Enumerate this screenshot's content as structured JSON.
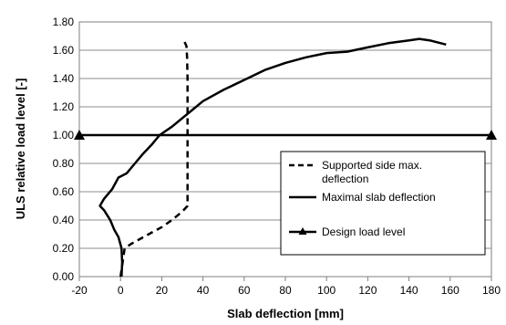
{
  "chart_data": {
    "type": "line",
    "title": "",
    "xlabel": "Slab deflection [mm]",
    "ylabel": "ULS relative load level [-]",
    "xlim": [
      -20,
      180
    ],
    "ylim": [
      0,
      1.8
    ],
    "x_ticks": [
      "-20",
      "0",
      "20",
      "40",
      "60",
      "80",
      "100",
      "120",
      "140",
      "160",
      "180"
    ],
    "y_ticks": [
      "0.00",
      "0.20",
      "0.40",
      "0.60",
      "0.80",
      "1.00",
      "1.20",
      "1.40",
      "1.60",
      "1.80"
    ],
    "grid": "horizontal",
    "legend_position": "right-middle",
    "series": [
      {
        "name": "Supported side max. deflection",
        "legend_lines": [
          "Supported side max.",
          "deflection"
        ],
        "style": "dashed",
        "color": "#000000",
        "points": [
          [
            0,
            0.0
          ],
          [
            1,
            0.1
          ],
          [
            2,
            0.2
          ],
          [
            5,
            0.23
          ],
          [
            10,
            0.27
          ],
          [
            15,
            0.31
          ],
          [
            20,
            0.35
          ],
          [
            25,
            0.4
          ],
          [
            30,
            0.46
          ],
          [
            32.5,
            0.5
          ],
          [
            32.5,
            0.7
          ],
          [
            32.5,
            0.9
          ],
          [
            32.5,
            1.0
          ],
          [
            32.5,
            1.2
          ],
          [
            32.5,
            1.4
          ],
          [
            32.3,
            1.55
          ],
          [
            32,
            1.63
          ],
          [
            31,
            1.66
          ],
          [
            30,
            1.68
          ]
        ]
      },
      {
        "name": "Maximal slab deflection",
        "style": "solid",
        "color": "#000000",
        "points": [
          [
            0.5,
            0.0
          ],
          [
            0.8,
            0.1
          ],
          [
            0.5,
            0.2
          ],
          [
            -1,
            0.28
          ],
          [
            -3,
            0.33
          ],
          [
            -5,
            0.4
          ],
          [
            -8,
            0.47
          ],
          [
            -10,
            0.5
          ],
          [
            -8,
            0.55
          ],
          [
            -4,
            0.62
          ],
          [
            -1,
            0.7
          ],
          [
            3,
            0.73
          ],
          [
            7,
            0.8
          ],
          [
            11,
            0.87
          ],
          [
            15,
            0.93
          ],
          [
            19,
            1.0
          ],
          [
            25,
            1.06
          ],
          [
            30,
            1.12
          ],
          [
            35,
            1.18
          ],
          [
            40,
            1.24
          ],
          [
            50,
            1.32
          ],
          [
            60,
            1.39
          ],
          [
            70,
            1.46
          ],
          [
            80,
            1.51
          ],
          [
            90,
            1.55
          ],
          [
            100,
            1.58
          ],
          [
            110,
            1.59
          ],
          [
            120,
            1.62
          ],
          [
            130,
            1.65
          ],
          [
            140,
            1.67
          ],
          [
            145,
            1.68
          ],
          [
            150,
            1.67
          ],
          [
            158,
            1.64
          ]
        ]
      },
      {
        "name": "Design load level",
        "style": "solid-triangle-markers",
        "color": "#000000",
        "points": [
          [
            -20,
            1.0
          ],
          [
            180,
            1.0
          ]
        ]
      }
    ]
  }
}
